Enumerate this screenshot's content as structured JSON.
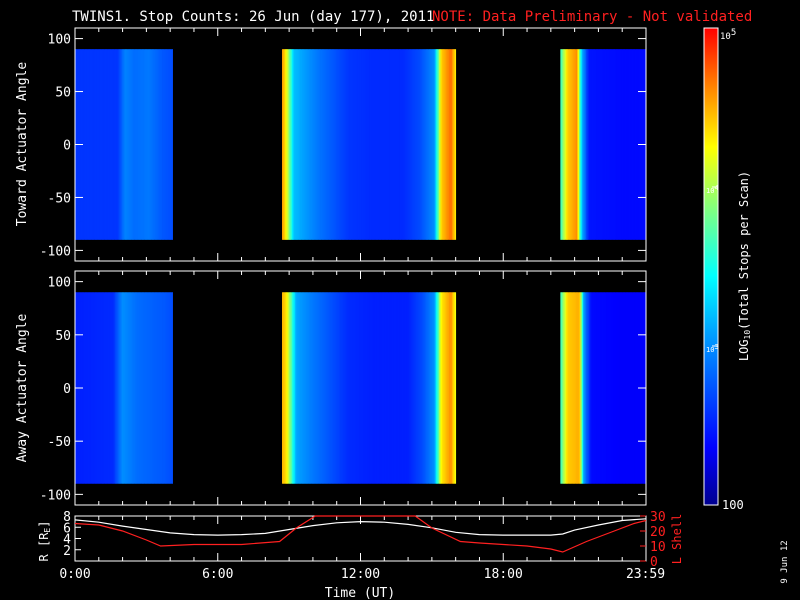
{
  "title": {
    "main": "TWINS1. Stop Counts: 26 Jun (day 177), 2011",
    "note": "NOTE: Data Preliminary - Not validated"
  },
  "side_date": "9 Jun 12",
  "chart_data": [
    {
      "type": "heatmap",
      "name": "toward",
      "ylabel": "Toward Actuator Angle",
      "ylim": [
        -110,
        110
      ],
      "yticks": [
        100,
        50,
        0,
        -50,
        -100
      ],
      "xlim": [
        0,
        24
      ],
      "angle_range": [
        -90,
        90
      ],
      "log10_range": [
        2,
        5
      ],
      "segments": [
        {
          "start_h": 0.0,
          "end_h": 4.1,
          "profile": [
            [
              0,
              2.6
            ],
            [
              1.8,
              2.6
            ],
            [
              2.1,
              2.95
            ],
            [
              2.5,
              2.85
            ],
            [
              3.1,
              2.9
            ],
            [
              3.7,
              2.75
            ],
            [
              4.1,
              2.7
            ]
          ]
        },
        {
          "start_h": 8.7,
          "end_h": 16.0,
          "profile": [
            [
              8.7,
              4.6
            ],
            [
              8.9,
              4.2
            ],
            [
              9.2,
              3.2
            ],
            [
              10.2,
              2.9
            ],
            [
              11.5,
              2.6
            ],
            [
              12.5,
              2.55
            ],
            [
              13.8,
              2.55
            ],
            [
              14.5,
              2.7
            ],
            [
              15.1,
              3.0
            ],
            [
              15.4,
              4.4
            ],
            [
              15.8,
              4.7
            ],
            [
              16.0,
              4.3
            ]
          ]
        },
        {
          "start_h": 20.4,
          "end_h": 24.0,
          "profile": [
            [
              20.4,
              3.6
            ],
            [
              20.7,
              4.4
            ],
            [
              21.1,
              4.6
            ],
            [
              21.3,
              3.2
            ],
            [
              21.6,
              2.45
            ],
            [
              23.0,
              2.4
            ],
            [
              24.0,
              2.4
            ]
          ]
        }
      ]
    },
    {
      "type": "heatmap",
      "name": "away",
      "ylabel": "Away Actuator Angle",
      "ylim": [
        -110,
        110
      ],
      "yticks": [
        100,
        50,
        0,
        -50,
        -100
      ],
      "xlim": [
        0,
        24
      ],
      "angle_range": [
        -90,
        90
      ],
      "log10_range": [
        2,
        5
      ],
      "segments": [
        {
          "start_h": 0.0,
          "end_h": 4.1,
          "profile": [
            [
              0,
              2.5
            ],
            [
              1.6,
              2.55
            ],
            [
              2.0,
              3.0
            ],
            [
              2.6,
              2.85
            ],
            [
              3.2,
              2.8
            ],
            [
              3.8,
              2.75
            ],
            [
              4.1,
              2.7
            ]
          ]
        },
        {
          "start_h": 8.7,
          "end_h": 16.0,
          "profile": [
            [
              8.7,
              4.5
            ],
            [
              8.9,
              4.3
            ],
            [
              9.3,
              3.1
            ],
            [
              10.0,
              2.9
            ],
            [
              11.5,
              2.55
            ],
            [
              12.5,
              2.5
            ],
            [
              14.0,
              2.5
            ],
            [
              14.6,
              2.7
            ],
            [
              15.1,
              3.0
            ],
            [
              15.4,
              4.3
            ],
            [
              15.8,
              4.6
            ],
            [
              16.0,
              4.2
            ]
          ]
        },
        {
          "start_h": 20.4,
          "end_h": 24.0,
          "profile": [
            [
              20.4,
              3.6
            ],
            [
              20.7,
              4.4
            ],
            [
              21.2,
              4.5
            ],
            [
              21.4,
              3.0
            ],
            [
              21.7,
              2.4
            ],
            [
              23.0,
              2.35
            ],
            [
              24.0,
              2.35
            ]
          ]
        }
      ]
    },
    {
      "type": "line",
      "name": "orbit",
      "ylabel_left": "R [R",
      "ylabel_left_sub": "E",
      "ylabel_left_end": "]",
      "ylabel_right": "L Shell",
      "ylim_left": [
        0,
        8
      ],
      "ylim_right": [
        0,
        30
      ],
      "yticks_left": [
        8,
        6,
        4,
        2
      ],
      "yticks_right": [
        30,
        20,
        10,
        0
      ],
      "xlabel": "Time (UT)",
      "xticks": [
        "0:00",
        "6:00",
        "12:00",
        "18:00",
        "23:59"
      ],
      "xtick_values": [
        0,
        6,
        12,
        18,
        23.98
      ],
      "series": [
        {
          "axis": "left",
          "color": "#ffffff",
          "x": [
            0,
            1,
            2,
            3,
            4,
            5,
            6,
            7,
            8,
            9,
            10,
            11,
            12,
            13,
            14,
            15,
            16,
            17,
            18,
            19,
            20,
            20.5,
            21,
            22,
            23,
            24
          ],
          "y": [
            7.3,
            6.9,
            6.2,
            5.6,
            5.0,
            4.7,
            4.6,
            4.7,
            4.9,
            5.6,
            6.3,
            6.8,
            7.0,
            6.9,
            6.5,
            5.9,
            5.1,
            4.7,
            4.6,
            4.6,
            4.6,
            4.8,
            5.5,
            6.4,
            7.2,
            7.5
          ]
        },
        {
          "axis": "right",
          "color": "#ff2020",
          "x": [
            0,
            1,
            2,
            3,
            3.6,
            5,
            6,
            7,
            8.6,
            9.3,
            10.1,
            14.3,
            15.0,
            16.2,
            17,
            18,
            19,
            20,
            20.5,
            21.5,
            22.5,
            23.5,
            24
          ],
          "y": [
            25,
            24,
            20,
            14,
            10,
            11,
            11,
            11,
            13,
            22,
            32,
            32,
            22,
            13,
            12,
            11,
            10,
            8,
            6,
            13,
            19,
            25,
            27
          ]
        }
      ]
    }
  ],
  "colorbar": {
    "label": "LOG",
    "label_sub": "10",
    "label_end": "(Total Stops per Scan)",
    "tick_high_base": "10",
    "tick_high_exp": "5",
    "tick_mid_base": "10",
    "tick_mid_exp": "4",
    "tick_low_base": "10",
    "tick_low_exp": "3",
    "tick_min": "100"
  },
  "colors": {
    "frame": "#ffffff",
    "background": "#000000",
    "note": "#ff2020",
    "lshell": "#ff2020"
  }
}
